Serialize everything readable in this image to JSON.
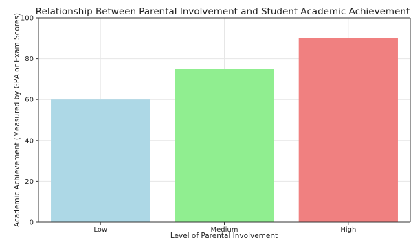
{
  "chart_data": {
    "type": "bar",
    "title": "Relationship Between Parental Involvement and Student Academic Achievement",
    "xlabel": "Level of Parental Involvement",
    "ylabel": "Academic Achievement (Measured by GPA or Exam Scores)",
    "categories": [
      "Low",
      "Medium",
      "High"
    ],
    "values": [
      60,
      75,
      90
    ],
    "colors": [
      "#add8e6",
      "#90ee90",
      "#f08080"
    ],
    "ylim": [
      0,
      100
    ],
    "yticks": [
      0,
      20,
      40,
      60,
      80,
      100
    ],
    "grid": true,
    "legend": "none"
  }
}
